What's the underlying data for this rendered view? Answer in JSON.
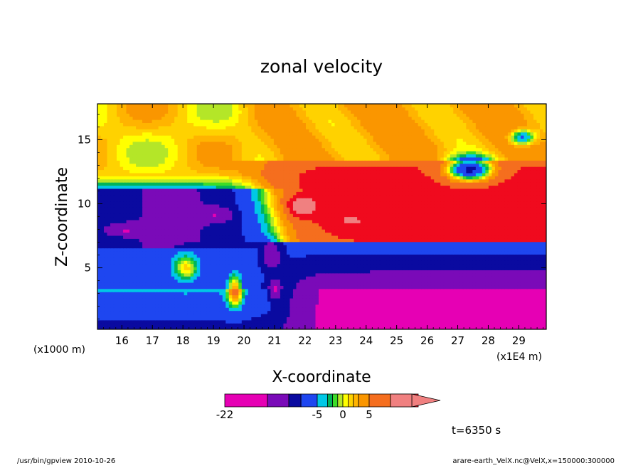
{
  "chart_data": {
    "type": "heatmap",
    "title": "zonal velocity",
    "xlabel": "X-coordinate",
    "ylabel": "Z-coordinate",
    "x_unit_label": "(x1E4 m)",
    "y_unit_label": "(x1000 m)",
    "xlim": [
      15.2,
      29.9
    ],
    "ylim": [
      0.2,
      17.8
    ],
    "x_ticks": [
      16,
      17,
      18,
      19,
      20,
      21,
      22,
      23,
      24,
      25,
      26,
      27,
      28,
      29
    ],
    "y_ticks": [
      5,
      10,
      15
    ],
    "x_tick_labels": [
      "16",
      "17",
      "18",
      "19",
      "20",
      "21",
      "22",
      "23",
      "24",
      "25",
      "26",
      "27",
      "28",
      "29"
    ],
    "y_tick_labels": [
      "5",
      "10",
      "15"
    ],
    "grid": false,
    "contour_levels": [
      -22,
      -17,
      -12,
      -9,
      -5,
      -3,
      -2,
      -1,
      0,
      1,
      2,
      3,
      5,
      8,
      11,
      15
    ],
    "level_colors": [
      "#e600b4",
      "#7a0ab8",
      "#0a0aa0",
      "#1e46f0",
      "#00c8e6",
      "#00b45a",
      "#3cdc28",
      "#b4e628",
      "#ffff00",
      "#ffd200",
      "#ffb400",
      "#fa9600",
      "#f56e1e",
      "#f00a1e",
      "#f08080"
    ],
    "colorbar": {
      "label_values": [
        -22,
        -5,
        0,
        5
      ],
      "labels": [
        "-22",
        "-5",
        "0",
        "5"
      ],
      "overflow_arrow_color": "#f08080"
    },
    "regions": [
      {
        "x_range": [
          15.2,
          20.5
        ],
        "z_range": [
          12.0,
          17.8
        ],
        "value_range": [
          1,
          8
        ],
        "description_value": 2
      },
      {
        "x_range": [
          15.2,
          20.0
        ],
        "z_range": [
          4.0,
          12.0
        ],
        "value_range": [
          -17,
          -5
        ],
        "description_value": -12
      },
      {
        "x_range": [
          20.8,
          29.9
        ],
        "z_range": [
          7.5,
          12.5
        ],
        "value_range": [
          5,
          15
        ],
        "description_value": 9
      },
      {
        "x_range": [
          21.5,
          29.9
        ],
        "z_range": [
          0.2,
          3.5
        ],
        "value_range": [
          -22,
          -17
        ],
        "description_value": -19
      },
      {
        "x_range": [
          26.8,
          28.2
        ],
        "z_range": [
          11.5,
          14.0
        ],
        "value_range": [
          -12,
          -5
        ],
        "description_value": -9
      },
      {
        "x_range": [
          21.5,
          22.4
        ],
        "z_range": [
          8.9,
          10.6
        ],
        "value_range": [
          15,
          22
        ],
        "description_value": 16
      }
    ],
    "annotation": "t=6350 s"
  },
  "footer": {
    "left": "/usr/bin/gpview   2010-10-26",
    "right": "arare-earth_VelX.nc@VelX,x=150000:300000"
  }
}
